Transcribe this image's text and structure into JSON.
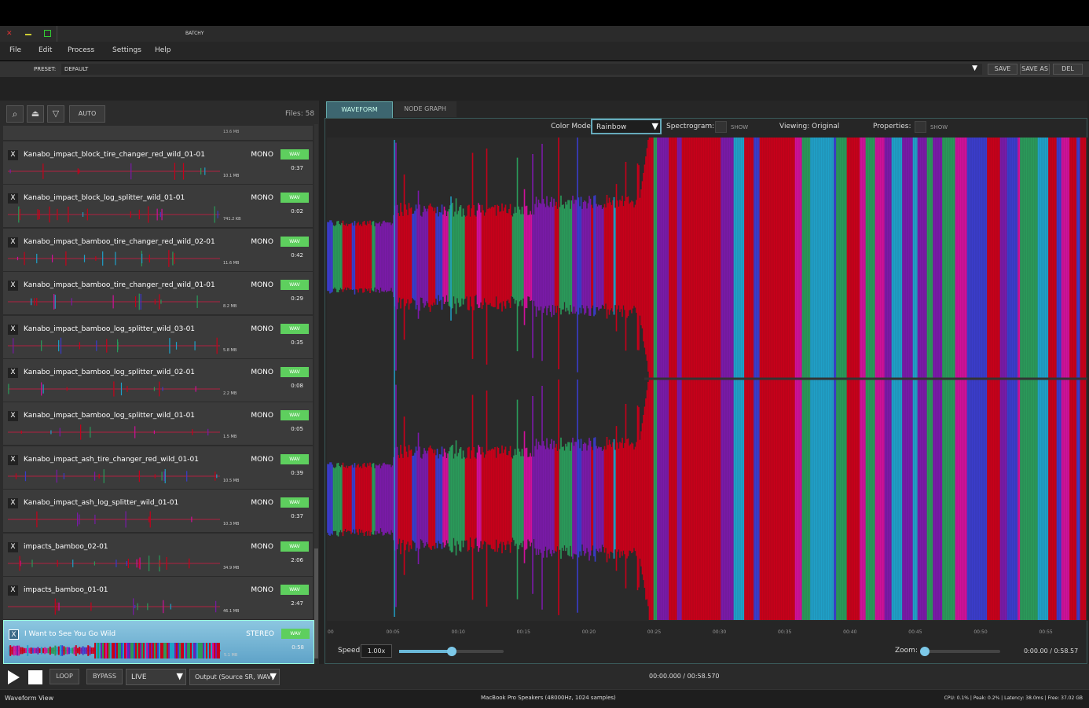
{
  "window": {
    "title": "BATCHY"
  },
  "menu": [
    "File",
    "Edit",
    "Process",
    "Settings",
    "Help"
  ],
  "preset": {
    "label": "PRESET:",
    "value": "DEFAULT",
    "buttons": [
      "SAVE",
      "SAVE AS",
      "DEL"
    ]
  },
  "file_panel": {
    "auto": "AUTO",
    "count": "Files: 58",
    "partial_size": "13.6 MB",
    "files": [
      {
        "name": "Kanabo_impact_block_tire_changer_red_wild_01-01",
        "channels": "MONO",
        "format": "WAV",
        "duration": "0:37",
        "size": "10.1 MB"
      },
      {
        "name": "Kanabo_impact_block_log_splitter_wild_01-01",
        "channels": "MONO",
        "format": "WAV",
        "duration": "0:02",
        "size": "741.2 KB"
      },
      {
        "name": "Kanabo_impact_bamboo_tire_changer_red_wild_02-01",
        "channels": "MONO",
        "format": "WAV",
        "duration": "0:42",
        "size": "11.6 MB"
      },
      {
        "name": "Kanabo_impact_bamboo_tire_changer_red_wild_01-01",
        "channels": "MONO",
        "format": "WAV",
        "duration": "0:29",
        "size": "8.2 MB"
      },
      {
        "name": "Kanabo_impact_bamboo_log_splitter_wild_03-01",
        "channels": "MONO",
        "format": "WAV",
        "duration": "0:35",
        "size": "5.8 MB"
      },
      {
        "name": "Kanabo_impact_bamboo_log_splitter_wild_02-01",
        "channels": "MONO",
        "format": "WAV",
        "duration": "0:08",
        "size": "2.2 MB"
      },
      {
        "name": "Kanabo_impact_bamboo_log_splitter_wild_01-01",
        "channels": "MONO",
        "format": "WAV",
        "duration": "0:05",
        "size": "1.5 MB"
      },
      {
        "name": "Kanabo_impact_ash_tire_changer_red_wild_01-01",
        "channels": "MONO",
        "format": "WAV",
        "duration": "0:39",
        "size": "10.5 MB"
      },
      {
        "name": "Kanabo_impact_ash_log_splitter_wild_01-01",
        "channels": "MONO",
        "format": "WAV",
        "duration": "0:37",
        "size": "10.3 MB"
      },
      {
        "name": "impacts_bamboo_02-01",
        "channels": "MONO",
        "format": "WAV",
        "duration": "2:06",
        "size": "34.9 MB"
      },
      {
        "name": "impacts_bamboo_01-01",
        "channels": "MONO",
        "format": "WAV",
        "duration": "2:47",
        "size": "46.1 MB"
      },
      {
        "name": "I Want to See You Go Wild",
        "channels": "STEREO",
        "format": "WAV",
        "duration": "0:58",
        "size": "5.1 MB"
      }
    ]
  },
  "tabs": [
    "WAVEFORM",
    "NODE GRAPH"
  ],
  "view_controls": {
    "color_mode_label": "Color Mode:",
    "color_mode": "Rainbow",
    "spectrogram_label": "Spectrogram:",
    "spectrogram_show": "SHOW",
    "viewing": "Viewing: Original",
    "properties_label": "Properties:",
    "properties_show": "SHOW"
  },
  "time_axis": [
    "00",
    "00:05",
    "00:10",
    "00:15",
    "00:20",
    "00:25",
    "00:30",
    "00:35",
    "00:40",
    "00:45",
    "00:50",
    "00:55"
  ],
  "speed": {
    "label": "Speed:",
    "value": "1.00x"
  },
  "zoom": {
    "label": "Zoom:",
    "time": "0:00.00 / 0:58.57"
  },
  "transport": {
    "loop": "LOOP",
    "bypass": "BYPASS",
    "mode": "LIVE",
    "output": "Output (Source SR, WAV)",
    "time": "00:00.000 / 00:58.570"
  },
  "status": {
    "view": "Waveform View",
    "device": "MacBook Pro Speakers (48000Hz, 1024 samples)",
    "stats": "CPU: 0.1% | Peak: 0.2% | Latency: 38.0ms | Free: 37.02 GB"
  }
}
